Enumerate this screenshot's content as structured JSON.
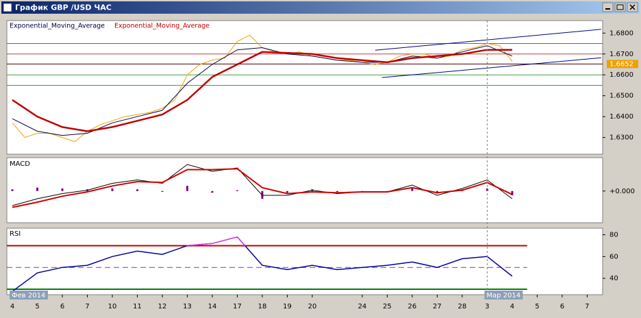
{
  "window": {
    "title": "График GBP /USD ЧАС"
  },
  "x_axis": {
    "xlim": [
      -0.22,
      23.62
    ],
    "xticks": [
      {
        "value": 0,
        "label": "4"
      },
      {
        "value": 1,
        "label": "5"
      },
      {
        "value": 2,
        "label": "6"
      },
      {
        "value": 3,
        "label": "7"
      },
      {
        "value": 4,
        "label": "10"
      },
      {
        "value": 5,
        "label": "11"
      },
      {
        "value": 6,
        "label": "12"
      },
      {
        "value": 7,
        "label": "13"
      },
      {
        "value": 8,
        "label": "14"
      },
      {
        "value": 9,
        "label": "17"
      },
      {
        "value": 10,
        "label": "18"
      },
      {
        "value": 11,
        "label": "19"
      },
      {
        "value": 12,
        "label": "20"
      },
      {
        "value": 14,
        "label": "24"
      },
      {
        "value": 15,
        "label": "25"
      },
      {
        "value": 16,
        "label": "26"
      },
      {
        "value": 17,
        "label": "27"
      },
      {
        "value": 18,
        "label": "28"
      },
      {
        "value": 19,
        "label": "3"
      },
      {
        "value": 20,
        "label": "4"
      },
      {
        "value": 21,
        "label": "5"
      },
      {
        "value": 22,
        "label": "6"
      },
      {
        "value": 23,
        "label": "7"
      }
    ],
    "period_labels": [
      {
        "value": 0,
        "label": "Фев 2014"
      },
      {
        "value": 19,
        "label": "Мар 2014"
      }
    ]
  },
  "chart_data": [
    {
      "type": "line",
      "ylim": [
        1.622,
        1.686
      ],
      "yticks": [
        {
          "value": 1.63,
          "label": "1.6300"
        },
        {
          "value": 1.64,
          "label": "1.6400"
        },
        {
          "value": 1.65,
          "label": "1.6500"
        },
        {
          "value": 1.66,
          "label": "1.6600"
        },
        {
          "value": 1.67,
          "label": "1.6700"
        },
        {
          "value": 1.68,
          "label": "1.6800"
        }
      ],
      "price": {
        "color": "#f0a000",
        "x": [
          0,
          0.5,
          1,
          1.5,
          2,
          2.5,
          3,
          3.5,
          4,
          4.5,
          5,
          5.5,
          6,
          6.5,
          7,
          7.5,
          8,
          8.5,
          9,
          9.5,
          10,
          10.5,
          11,
          11.5,
          12,
          12.5,
          13,
          13.5,
          14,
          14.5,
          15,
          15.5,
          16,
          16.5,
          17,
          17.5,
          18,
          18.5,
          19,
          19.5,
          20
        ],
        "values": [
          1.637,
          1.63,
          1.632,
          1.632,
          1.63,
          1.628,
          1.633,
          1.636,
          1.638,
          1.64,
          1.641,
          1.642,
          1.644,
          1.648,
          1.66,
          1.665,
          1.667,
          1.668,
          1.676,
          1.679,
          1.673,
          1.671,
          1.67,
          1.671,
          1.669,
          1.668,
          1.667,
          1.667,
          1.666,
          1.665,
          1.666,
          1.669,
          1.67,
          1.67,
          1.668,
          1.669,
          1.672,
          1.673,
          1.675,
          1.674,
          1.6665
        ]
      },
      "last_price": 1.6652,
      "last_price_color": "#f0a000",
      "series": [
        {
          "name": "Exponential_Moving_Average",
          "color": "#000040",
          "width": 1,
          "x": [
            0,
            1,
            2,
            3,
            4,
            5,
            6,
            7,
            8,
            9,
            10,
            11,
            12,
            13,
            14,
            15,
            16,
            17,
            18,
            19,
            20
          ],
          "values": [
            1.639,
            1.633,
            1.631,
            1.632,
            1.637,
            1.64,
            1.643,
            1.656,
            1.665,
            1.672,
            1.673,
            1.67,
            1.669,
            1.667,
            1.666,
            1.666,
            1.669,
            1.668,
            1.671,
            1.674,
            1.669
          ]
        },
        {
          "name": "Exponential_Moving_Average",
          "color": "#c00000",
          "width": 2.5,
          "x": [
            0,
            1,
            2,
            3,
            4,
            5,
            6,
            7,
            8,
            9,
            10,
            11,
            12,
            13,
            14,
            15,
            16,
            17,
            18,
            19,
            20
          ],
          "values": [
            1.648,
            1.64,
            1.635,
            1.633,
            1.635,
            1.638,
            1.641,
            1.648,
            1.659,
            1.665,
            1.671,
            1.6705,
            1.67,
            1.668,
            1.667,
            1.666,
            1.668,
            1.669,
            1.67,
            1.672,
            1.672
          ]
        }
      ],
      "hlines": [
        {
          "value": 1.675,
          "color": "#c04040"
        },
        {
          "value": 1.67,
          "color": "#c04040"
        },
        {
          "value": 1.6652,
          "color": "#400000"
        },
        {
          "value": 1.66,
          "color": "#40a040"
        },
        {
          "value": 1.655,
          "color": "#40a040"
        }
      ],
      "channels": [
        {
          "color": "#000080",
          "x": [
            14.52,
            23.56
          ],
          "y": [
            1.6718,
            1.6818
          ]
        },
        {
          "color": "#000080",
          "x": [
            14.79,
            23.56
          ],
          "y": [
            1.6587,
            1.6682
          ]
        }
      ]
    },
    {
      "type": "line",
      "title": "MACD",
      "ylim": [
        -0.0037,
        0.0039
      ],
      "yticks": [
        {
          "value": 0,
          "label": "+0.000"
        }
      ],
      "histogram": {
        "color": "#800080",
        "x": [
          0,
          1,
          2,
          3,
          4,
          5,
          6,
          7,
          8,
          9,
          10,
          11,
          12,
          13,
          14,
          15,
          16,
          17,
          18,
          19,
          20
        ],
        "values": [
          0.0002,
          0.0004,
          0.0003,
          0.0002,
          0.0003,
          0.0002,
          -0.0001,
          0.0006,
          -0.0002,
          0.0001,
          -0.0009,
          -0.0002,
          0.0002,
          -0.0001,
          0,
          0,
          0.0003,
          -0.0003,
          0.0002,
          0.0003,
          -0.0005
        ]
      },
      "series": [
        {
          "color": "#000000",
          "width": 1,
          "x": [
            0,
            1,
            2,
            3,
            4,
            5,
            6,
            7,
            8,
            9,
            10,
            11,
            12,
            13,
            14,
            15,
            16,
            17,
            18,
            19,
            20
          ],
          "values": [
            -0.0017,
            -0.0009,
            -0.0003,
            0.0001,
            0.0009,
            0.0013,
            0.0009,
            0.0031,
            0.0023,
            0.0027,
            -0.0005,
            -0.0005,
            0.0001,
            -0.0003,
            -0.0001,
            -0.0001,
            0.0007,
            -0.0005,
            0.0003,
            0.0013,
            -0.0009
          ]
        },
        {
          "color": "#d00000",
          "width": 2,
          "x": [
            0,
            1,
            2,
            3,
            4,
            5,
            6,
            7,
            8,
            9,
            10,
            11,
            12,
            13,
            14,
            15,
            16,
            17,
            18,
            19,
            20
          ],
          "values": [
            -0.0019,
            -0.0013,
            -0.0006,
            -0.0001,
            0.0006,
            0.0011,
            0.001,
            0.0025,
            0.0025,
            0.0026,
            0.0004,
            -0.0003,
            -0.0001,
            -0.0002,
            -0.0001,
            -0.0001,
            0.0004,
            -0.0002,
            0.0001,
            0.001,
            -0.0004
          ]
        }
      ]
    },
    {
      "type": "line",
      "title": "RSI",
      "ylim": [
        25,
        86
      ],
      "yticks": [
        40,
        60,
        80
      ],
      "overbought": {
        "value": 70,
        "color": "#e040e0"
      },
      "levels": [
        {
          "value": 70,
          "color": "#c00000",
          "dash": false
        },
        {
          "value": 50,
          "color": "#9030a0",
          "dash": true
        },
        {
          "value": 30,
          "color": "#008000",
          "dash": false
        }
      ],
      "series": [
        {
          "color": "#0000a0",
          "width": 1.5,
          "x": [
            0,
            1,
            2,
            3,
            4,
            5,
            6,
            7,
            8,
            9,
            10,
            11,
            12,
            13,
            14,
            15,
            16,
            17,
            18,
            19,
            20
          ],
          "values": [
            28,
            45,
            50,
            52,
            60,
            65,
            62,
            70,
            72,
            78,
            52,
            48,
            52,
            48,
            50,
            52,
            55,
            50,
            58,
            60,
            42
          ]
        }
      ]
    }
  ]
}
